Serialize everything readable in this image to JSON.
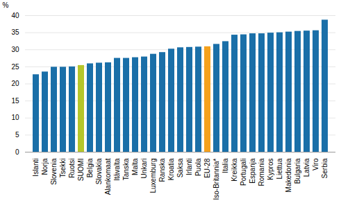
{
  "chart_data": {
    "type": "bar",
    "categories": [
      "Islanti",
      "Norja",
      "Slovenia",
      "Tsekki",
      "Ruotsi",
      "SUOMI",
      "Belgia",
      "Slovakia",
      "Alankomaat",
      "Itävalta",
      "Tanska",
      "Malta",
      "Unkari",
      "Luxemburg",
      "Ranska",
      "Kroatia",
      "Saksa",
      "Irlanti",
      "Puola",
      "EU-28",
      "Iso-Britannia*",
      "Italia",
      "Kreikka",
      "Portugali",
      "Espanja",
      "Romania",
      "Kypros",
      "Liettua",
      "Makedonia",
      "Bulgaria",
      "Latvia",
      "Viro",
      "Serbia"
    ],
    "values": [
      22.7,
      23.5,
      24.9,
      24.9,
      25.0,
      25.4,
      25.9,
      26.1,
      26.2,
      27.5,
      27.5,
      27.7,
      27.9,
      28.7,
      29.2,
      30.2,
      30.6,
      30.7,
      30.8,
      30.9,
      31.6,
      32.4,
      34.3,
      34.4,
      34.7,
      34.7,
      34.9,
      35.0,
      35.2,
      35.4,
      35.5,
      35.6,
      38.7
    ],
    "colors": [
      "#1a6fa8",
      "#1a6fa8",
      "#1a6fa8",
      "#1a6fa8",
      "#1a6fa8",
      "#b5c62a",
      "#1a6fa8",
      "#1a6fa8",
      "#1a6fa8",
      "#1a6fa8",
      "#1a6fa8",
      "#1a6fa8",
      "#1a6fa8",
      "#1a6fa8",
      "#1a6fa8",
      "#1a6fa8",
      "#1a6fa8",
      "#1a6fa8",
      "#1a6fa8",
      "#f5a11c",
      "#1a6fa8",
      "#1a6fa8",
      "#1a6fa8",
      "#1a6fa8",
      "#1a6fa8",
      "#1a6fa8",
      "#1a6fa8",
      "#1a6fa8",
      "#1a6fa8",
      "#1a6fa8",
      "#1a6fa8",
      "#1a6fa8",
      "#1a6fa8"
    ],
    "ylabel": "%",
    "ylim": [
      0,
      40
    ],
    "yticks": [
      0,
      5,
      10,
      15,
      20,
      25,
      30,
      35,
      40
    ],
    "grid": true
  }
}
